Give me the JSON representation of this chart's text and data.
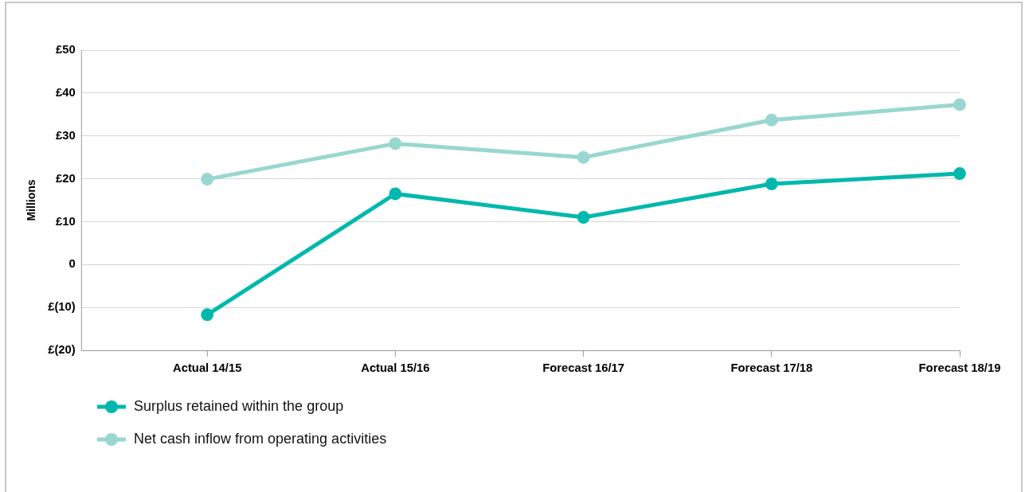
{
  "chart_data": {
    "type": "line",
    "ylabel": "Millions",
    "categories": [
      "Actual 14/15",
      "Actual 15/16",
      "Forecast 16/17",
      "Forecast 17/18",
      "Forecast 18/19"
    ],
    "series": [
      {
        "name": "Surplus retained within the group",
        "color": "#00b8ac",
        "values": [
          -11.7,
          16.5,
          11,
          18.8,
          21.2
        ]
      },
      {
        "name": "Net cash inflow from operating activities",
        "color": "#98d7cf",
        "values": [
          19.9,
          28.2,
          25,
          33.7,
          37.3
        ]
      }
    ],
    "ylim": [
      -20,
      50
    ],
    "yticks": [
      {
        "value": -20,
        "label": "£(20)"
      },
      {
        "value": -10,
        "label": "£(10)"
      },
      {
        "value": 0,
        "label": "0"
      },
      {
        "value": 10,
        "label": "£10"
      },
      {
        "value": 20,
        "label": "£20"
      },
      {
        "value": 30,
        "label": "£30"
      },
      {
        "value": 40,
        "label": "£40"
      },
      {
        "value": 50,
        "label": "£50"
      }
    ],
    "grid": "y",
    "legend": "bottom left",
    "marker": "circle",
    "line_style": "solid"
  }
}
